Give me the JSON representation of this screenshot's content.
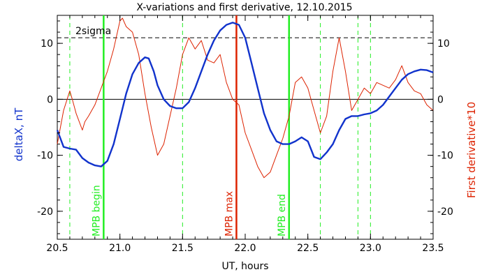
{
  "chart_data": {
    "type": "line",
    "title": "X-variations and first derivative, 12.10.2015",
    "xlabel": "UT, hours",
    "ylabel_left": "deltaX, nT",
    "ylabel_right": "First derivative*10",
    "xlim": [
      20.5,
      23.5
    ],
    "ylim": [
      -25,
      15
    ],
    "xticks": [
      20.5,
      21.0,
      21.5,
      22.0,
      22.5,
      23.0,
      23.5
    ],
    "xtick_labels": [
      "20.5",
      "21.0",
      "21.5",
      "22.0",
      "22.5",
      "23.0",
      "23.5"
    ],
    "yticks": [
      -20,
      -10,
      0,
      10
    ],
    "ytick_labels": [
      "-20",
      "-10",
      "0",
      "10"
    ],
    "sigma_label": "2sigma",
    "sigma_level": 11,
    "colors": {
      "deltaX": "#1133cc",
      "derivative": "#dd2200",
      "mpb": "#22ee22",
      "max": "#dd2200",
      "axes": "#000000"
    },
    "series": [
      {
        "name": "deltaX, nT",
        "x": [
          20.5,
          20.55,
          20.6,
          20.65,
          20.7,
          20.75,
          20.8,
          20.85,
          20.9,
          20.95,
          21.0,
          21.05,
          21.1,
          21.15,
          21.2,
          21.23,
          21.27,
          21.3,
          21.35,
          21.4,
          21.45,
          21.5,
          21.55,
          21.6,
          21.65,
          21.7,
          21.75,
          21.8,
          21.85,
          21.9,
          21.95,
          22.0,
          22.05,
          22.1,
          22.15,
          22.2,
          22.25,
          22.3,
          22.35,
          22.4,
          22.45,
          22.5,
          22.55,
          22.6,
          22.65,
          22.7,
          22.75,
          22.8,
          22.85,
          22.9,
          22.95,
          23.0,
          23.05,
          23.1,
          23.15,
          23.2,
          23.25,
          23.3,
          23.35,
          23.4,
          23.45,
          23.5
        ],
        "y": [
          -5.5,
          -8.5,
          -8.8,
          -9.0,
          -10.5,
          -11.3,
          -11.8,
          -12.0,
          -11.0,
          -8.0,
          -3.5,
          1.0,
          4.5,
          6.5,
          7.5,
          7.3,
          5.0,
          2.5,
          0.0,
          -1.2,
          -1.6,
          -1.6,
          -0.5,
          2.0,
          5.0,
          8.0,
          10.5,
          12.3,
          13.3,
          13.7,
          13.3,
          11.0,
          6.5,
          2.0,
          -2.5,
          -5.5,
          -7.5,
          -8.0,
          -8.0,
          -7.5,
          -6.8,
          -7.5,
          -10.3,
          -10.7,
          -9.5,
          -8.0,
          -5.5,
          -3.5,
          -3.0,
          -3.0,
          -2.7,
          -2.5,
          -2.0,
          -1.0,
          0.5,
          2.0,
          3.5,
          4.5,
          5.0,
          5.3,
          5.2,
          4.8
        ]
      },
      {
        "name": "First derivative*10",
        "x": [
          20.5,
          20.55,
          20.6,
          20.62,
          20.65,
          20.7,
          20.72,
          20.75,
          20.8,
          20.85,
          20.9,
          20.95,
          21.0,
          21.02,
          21.05,
          21.1,
          21.15,
          21.2,
          21.25,
          21.3,
          21.35,
          21.4,
          21.45,
          21.5,
          21.55,
          21.6,
          21.65,
          21.7,
          21.75,
          21.8,
          21.85,
          21.9,
          21.95,
          22.0,
          22.05,
          22.1,
          22.15,
          22.2,
          22.25,
          22.3,
          22.35,
          22.4,
          22.45,
          22.5,
          22.55,
          22.6,
          22.65,
          22.7,
          22.75,
          22.8,
          22.85,
          22.9,
          22.95,
          23.0,
          23.05,
          23.1,
          23.15,
          23.2,
          23.25,
          23.3,
          23.35,
          23.4,
          23.45,
          23.5
        ],
        "y": [
          -8.0,
          -2.0,
          1.5,
          0.0,
          -2.5,
          -5.5,
          -4.0,
          -3.0,
          -1.0,
          2.0,
          5.0,
          9.0,
          14.0,
          14.5,
          13.0,
          12.0,
          8.0,
          1.0,
          -5.0,
          -10.0,
          -8.0,
          -3.0,
          2.0,
          8.0,
          11.0,
          9.0,
          10.5,
          7.0,
          6.5,
          8.0,
          3.0,
          0.0,
          -1.0,
          -6.0,
          -9.0,
          -12.0,
          -14.0,
          -13.0,
          -10.0,
          -7.0,
          -3.0,
          3.0,
          4.0,
          2.0,
          -2.0,
          -6.0,
          -3.0,
          5.0,
          11.0,
          5.0,
          -2.0,
          0.0,
          2.0,
          1.0,
          3.0,
          2.5,
          2.0,
          3.5,
          6.0,
          3.0,
          1.5,
          1.0,
          -1.0,
          -2.0
        ]
      }
    ],
    "vlines": [
      {
        "x": 20.6,
        "style": "dashed",
        "color": "#22ee22"
      },
      {
        "x": 20.87,
        "style": "solid",
        "color": "#22ee22",
        "label": "MPB begin"
      },
      {
        "x": 21.5,
        "style": "dashed",
        "color": "#22ee22"
      },
      {
        "x": 21.93,
        "style": "solid",
        "color": "#dd2200",
        "label": "MPB max"
      },
      {
        "x": 22.35,
        "style": "solid",
        "color": "#22ee22",
        "label": "MPB end"
      },
      {
        "x": 22.6,
        "style": "dashed",
        "color": "#22ee22"
      },
      {
        "x": 22.9,
        "style": "dashed",
        "color": "#22ee22"
      },
      {
        "x": 23.0,
        "style": "dashed",
        "color": "#22ee22"
      }
    ]
  }
}
